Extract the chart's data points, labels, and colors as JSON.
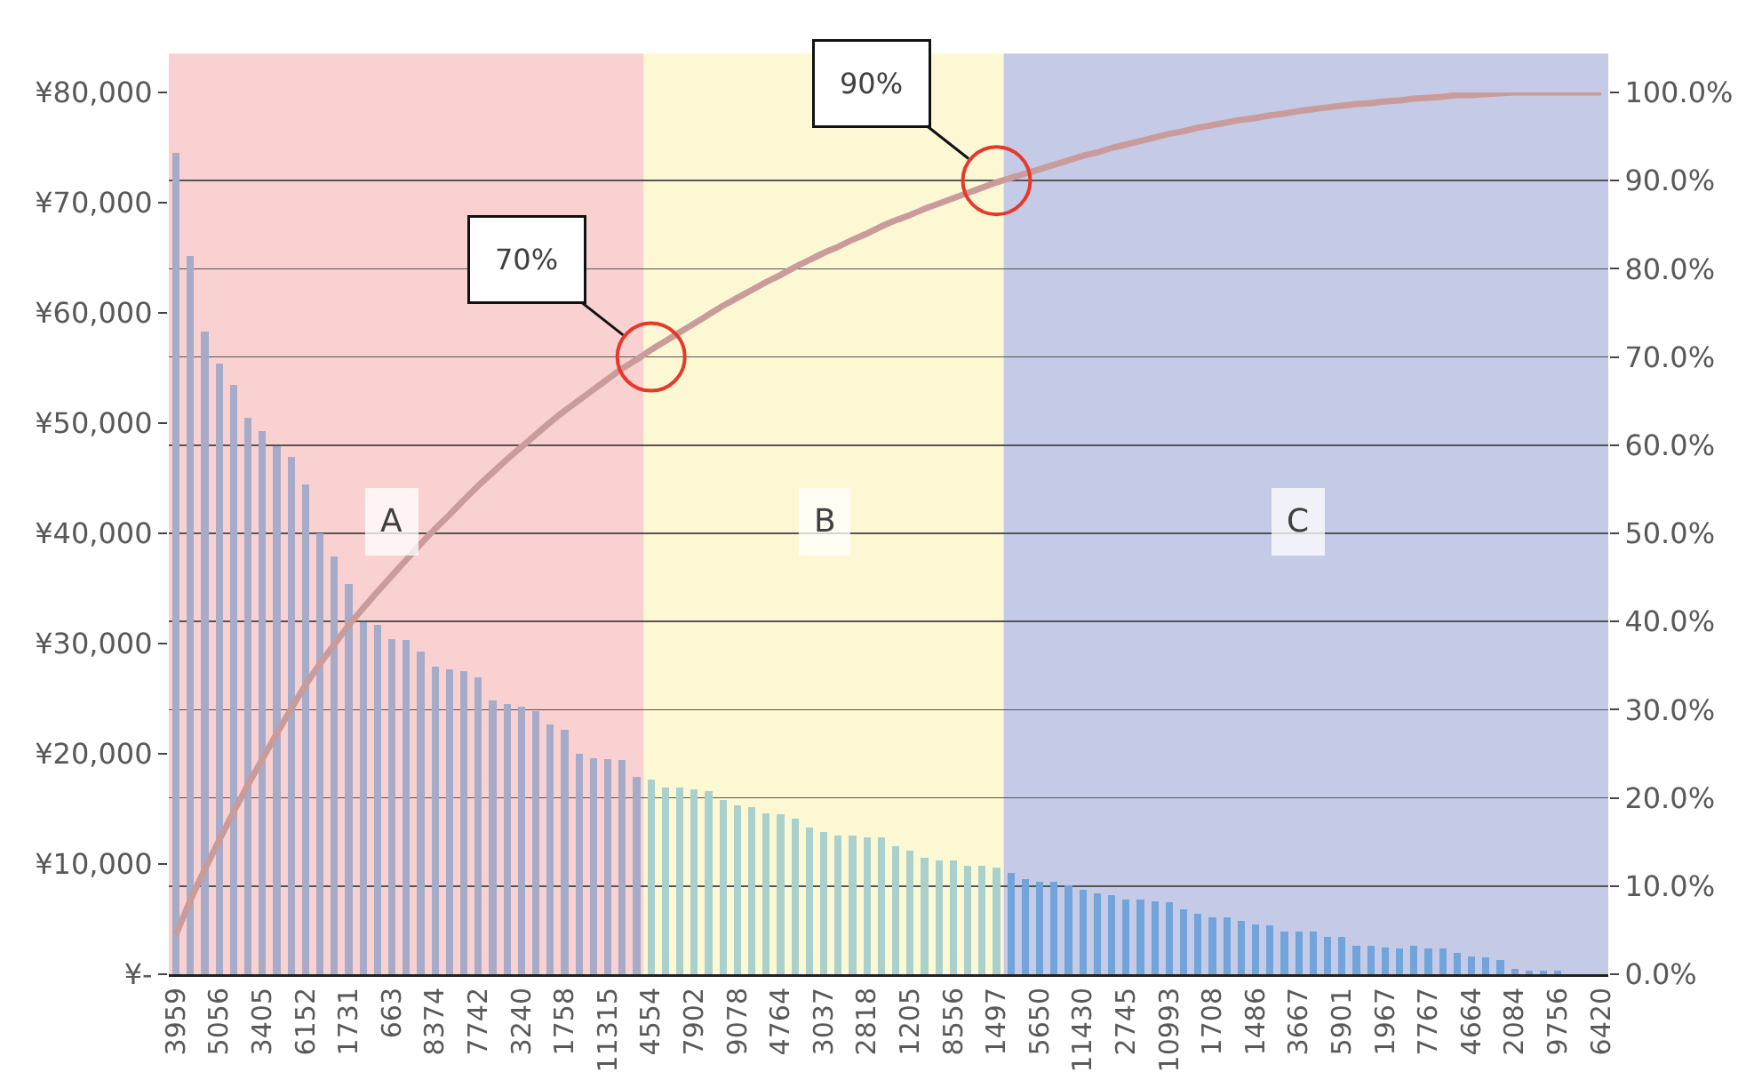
{
  "chart_data": {
    "type": "bar",
    "categories": [
      "3959",
      null,
      null,
      "5056",
      null,
      null,
      "3405",
      null,
      null,
      "6152",
      null,
      null,
      "1731",
      null,
      null,
      "663",
      null,
      null,
      "8374",
      null,
      null,
      "7742",
      null,
      null,
      "3240",
      null,
      null,
      "1758",
      null,
      null,
      "11315",
      null,
      null,
      "4554",
      null,
      null,
      "7902",
      null,
      null,
      "9078",
      null,
      null,
      "4764",
      null,
      null,
      "3037",
      null,
      null,
      "2818",
      null,
      null,
      "1205",
      null,
      null,
      "8556",
      null,
      null,
      "1497",
      null,
      null,
      "5650",
      null,
      null,
      "11430",
      null,
      null,
      "2745",
      null,
      null,
      "10993",
      null,
      null,
      "1708",
      null,
      null,
      "1486",
      null,
      null,
      "3667",
      null,
      null,
      "5901",
      null,
      null,
      "1967",
      null,
      null,
      "7767",
      null,
      null,
      "4664",
      null,
      null,
      "2084",
      null,
      null,
      "9756",
      null,
      null,
      "6420"
    ],
    "series": [
      {
        "type": "bar",
        "colors": [
          "#a6abc9",
          "#a6abc9",
          "#a6abc9",
          "#a6abc9",
          "#a6abc9",
          "#a6abc9",
          "#a6abc9",
          "#a6abc9",
          "#a6abc9",
          "#a6abc9",
          "#a6abc9",
          "#a6abc9",
          "#a6abc9",
          "#a6abc9",
          "#a6abc9",
          "#a6abc9",
          "#a6abc9",
          "#a6abc9",
          "#a6abc9",
          "#a6abc9",
          "#a6abc9",
          "#a6abc9",
          "#a6abc9",
          "#a6abc9",
          "#a6abc9",
          "#a6abc9",
          "#a6abc9",
          "#a6abc9",
          "#a6abc9",
          "#a6abc9",
          "#a6abc9",
          "#a6abc9",
          "#a6abc9",
          "#a9d0cd",
          "#a9d0cd",
          "#a9d0cd",
          "#a9d0cd",
          "#a9d0cd",
          "#a9d0cd",
          "#a9d0cd",
          "#a9d0cd",
          "#a9d0cd",
          "#a9d0cd",
          "#a9d0cd",
          "#a9d0cd",
          "#a9d0cd",
          "#a9d0cd",
          "#a9d0cd",
          "#a9d0cd",
          "#a9d0cd",
          "#a9d0cd",
          "#a9d0cd",
          "#a9d0cd",
          "#a9d0cd",
          "#a9d0cd",
          "#a9d0cd",
          "#a9d0cd",
          "#a9d0cd",
          "#71a4da",
          "#71a4da",
          "#71a4da",
          "#71a4da",
          "#71a4da",
          "#71a4da",
          "#71a4da",
          "#71a4da",
          "#71a4da",
          "#71a4da",
          "#71a4da",
          "#71a4da",
          "#71a4da",
          "#71a4da",
          "#71a4da",
          "#71a4da",
          "#71a4da",
          "#71a4da",
          "#71a4da",
          "#71a4da",
          "#71a4da",
          "#71a4da",
          "#71a4da",
          "#71a4da",
          "#71a4da",
          "#71a4da",
          "#71a4da",
          "#71a4da",
          "#71a4da",
          "#71a4da",
          "#71a4da",
          "#71a4da",
          "#71a4da",
          "#71a4da",
          "#71a4da",
          "#71a4da",
          "#71a4da",
          "#71a4da",
          "#71a4da",
          "#71a4da",
          "#71a4da",
          "#71a4da"
        ],
        "values": [
          74500,
          65200,
          58300,
          55400,
          53500,
          50500,
          49300,
          47900,
          46900,
          44400,
          40000,
          37900,
          35400,
          31900,
          31700,
          30400,
          30300,
          29300,
          27900,
          27700,
          27500,
          26900,
          24800,
          24500,
          24300,
          23900,
          22700,
          22200,
          20000,
          19600,
          19500,
          19400,
          17900,
          17700,
          16900,
          16900,
          16800,
          16600,
          15800,
          15300,
          15200,
          14600,
          14500,
          14100,
          13300,
          12900,
          12600,
          12600,
          12400,
          12400,
          11600,
          11200,
          10600,
          10300,
          10300,
          9800,
          9800,
          9700,
          9200,
          8600,
          8400,
          8400,
          8100,
          7700,
          7300,
          7200,
          6800,
          6800,
          6600,
          6500,
          5900,
          5500,
          5200,
          5200,
          4800,
          4500,
          4400,
          3900,
          3900,
          3900,
          3400,
          3400,
          2600,
          2600,
          2400,
          2300,
          2600,
          2300,
          2300,
          1900,
          1600,
          1500,
          1300,
          500,
          300,
          300,
          300,
          0,
          0,
          0
        ]
      },
      {
        "type": "line",
        "axis": "y2",
        "color": "#c99b9b",
        "values": [
          4.5,
          8.4,
          11.9,
          15.2,
          18.4,
          21.5,
          24.4,
          27.3,
          30.1,
          32.8,
          35.2,
          37.4,
          39.6,
          41.5,
          43.4,
          45.2,
          47.0,
          48.8,
          50.5,
          52.1,
          53.8,
          55.4,
          56.9,
          58.4,
          59.8,
          61.2,
          62.6,
          63.9,
          65.1,
          66.3,
          67.5,
          68.7,
          69.7,
          70.8,
          71.8,
          72.8,
          73.8,
          74.8,
          75.8,
          76.7,
          77.6,
          78.5,
          79.3,
          80.2,
          81.0,
          81.8,
          82.5,
          83.3,
          84.0,
          84.8,
          85.5,
          86.1,
          86.8,
          87.4,
          88.0,
          88.6,
          89.2,
          89.8,
          90.3,
          90.8,
          91.3,
          91.8,
          92.3,
          92.8,
          93.2,
          93.7,
          94.1,
          94.5,
          94.9,
          95.3,
          95.6,
          96.0,
          96.3,
          96.6,
          96.9,
          97.1,
          97.4,
          97.6,
          97.9,
          98.1,
          98.3,
          98.5,
          98.7,
          98.8,
          99.0,
          99.1,
          99.3,
          99.4,
          99.5,
          99.7,
          99.7,
          99.8,
          99.9,
          100.0,
          100.0,
          100.0,
          100.0,
          100.0,
          100.0,
          100.0
        ]
      }
    ],
    "ylim": [
      0,
      80000
    ],
    "yticks": [
      {
        "value": 0,
        "label": "¥-"
      },
      {
        "value": 10000,
        "label": "¥10,000"
      },
      {
        "value": 20000,
        "label": "¥20,000"
      },
      {
        "value": 30000,
        "label": "¥30,000"
      },
      {
        "value": 40000,
        "label": "¥40,000"
      },
      {
        "value": 50000,
        "label": "¥50,000"
      },
      {
        "value": 60000,
        "label": "¥60,000"
      },
      {
        "value": 70000,
        "label": "¥70,000"
      },
      {
        "value": 80000,
        "label": "¥80,000"
      }
    ],
    "y2lim": [
      0,
      100
    ],
    "y2ticks": [
      {
        "value": 0,
        "label": "0.0%"
      },
      {
        "value": 10,
        "label": "10.0%"
      },
      {
        "value": 20,
        "label": "20.0%"
      },
      {
        "value": 30,
        "label": "30.0%"
      },
      {
        "value": 40,
        "label": "40.0%"
      },
      {
        "value": 50,
        "label": "50.0%"
      },
      {
        "value": 60,
        "label": "60.0%"
      },
      {
        "value": 70,
        "label": "70.0%"
      },
      {
        "value": 80,
        "label": "80.0%"
      },
      {
        "value": 90,
        "label": "90.0%"
      },
      {
        "value": 100,
        "label": "100.0%"
      }
    ],
    "grid": "y",
    "annotations": [
      {
        "text": "A",
        "x": "663",
        "y": 41000
      },
      {
        "text": "B",
        "x": "3037",
        "y": 41000
      },
      {
        "text": "C",
        "x": "3667",
        "y": 41000
      },
      {
        "text": "70%",
        "x": "4554",
        "y": 56000
      },
      {
        "text": "90%",
        "x": "1497",
        "y": 72000
      }
    ]
  }
}
